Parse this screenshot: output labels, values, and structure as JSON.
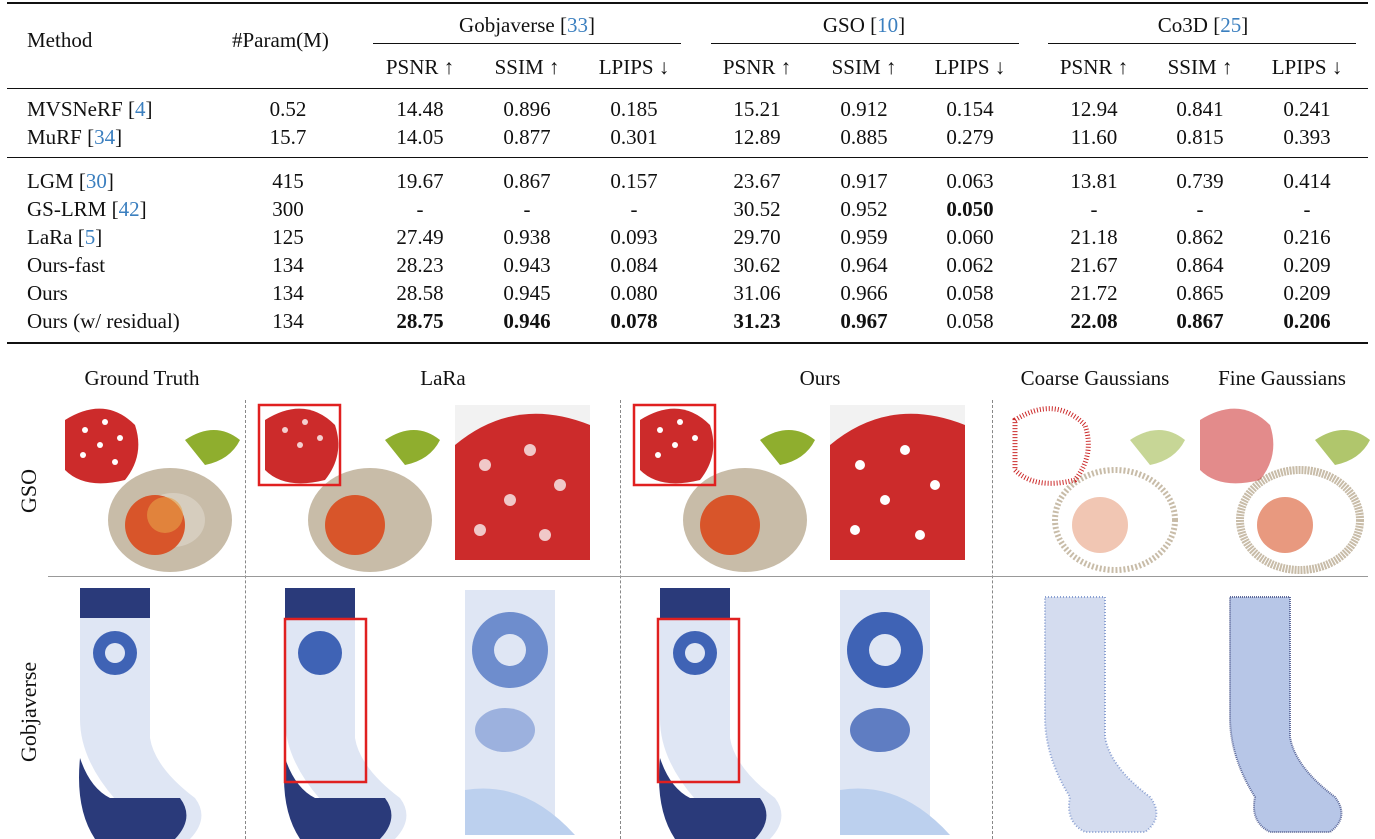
{
  "table": {
    "header": {
      "method": "Method",
      "params": "#Param(M)",
      "groups": [
        {
          "name": "Gobjaverse",
          "cite": "33"
        },
        {
          "name": "GSO",
          "cite": "10"
        },
        {
          "name": "Co3D",
          "cite": "25"
        }
      ],
      "metrics": [
        "PSNR ↑",
        "SSIM ↑",
        "LPIPS ↓",
        "PSNR ↑",
        "SSIM ↑",
        "LPIPS ↓",
        "PSNR ↑",
        "SSIM ↑",
        "LPIPS ↓"
      ]
    },
    "rows": [
      {
        "name": "MVSNeRF",
        "cite": "4",
        "param": "0.52",
        "vals": [
          "14.48",
          "0.896",
          "0.185",
          "15.21",
          "0.912",
          "0.154",
          "12.94",
          "0.841",
          "0.241"
        ],
        "bold": []
      },
      {
        "name": "MuRF",
        "cite": "34",
        "param": "15.7",
        "vals": [
          "14.05",
          "0.877",
          "0.301",
          "12.89",
          "0.885",
          "0.279",
          "11.60",
          "0.815",
          "0.393"
        ],
        "bold": []
      },
      {
        "name": "LGM",
        "cite": "30",
        "param": "415",
        "vals": [
          "19.67",
          "0.867",
          "0.157",
          "23.67",
          "0.917",
          "0.063",
          "13.81",
          "0.739",
          "0.414"
        ],
        "bold": []
      },
      {
        "name": "GS-LRM",
        "cite": "42",
        "param": "300",
        "vals": [
          "-",
          "-",
          "-",
          "30.52",
          "0.952",
          "0.050",
          "-",
          "-",
          "-"
        ],
        "bold": [
          5
        ]
      },
      {
        "name": "LaRa",
        "cite": "5",
        "param": "125",
        "vals": [
          "27.49",
          "0.938",
          "0.093",
          "29.70",
          "0.959",
          "0.060",
          "21.18",
          "0.862",
          "0.216"
        ],
        "bold": []
      },
      {
        "name": "Ours-fast",
        "cite": "",
        "param": "134",
        "vals": [
          "28.23",
          "0.943",
          "0.084",
          "30.62",
          "0.964",
          "0.062",
          "21.67",
          "0.864",
          "0.209"
        ],
        "bold": []
      },
      {
        "name": "Ours",
        "cite": "",
        "param": "134",
        "vals": [
          "28.58",
          "0.945",
          "0.080",
          "31.06",
          "0.966",
          "0.058",
          "21.72",
          "0.865",
          "0.209"
        ],
        "bold": []
      },
      {
        "name": "Ours (w/ residual)",
        "cite": "",
        "param": "134",
        "vals": [
          "28.75",
          "0.946",
          "0.078",
          "31.23",
          "0.967",
          "0.058",
          "22.08",
          "0.867",
          "0.206"
        ],
        "bold": [
          0,
          1,
          2,
          3,
          4,
          6,
          7,
          8
        ]
      }
    ]
  },
  "figure": {
    "columns": [
      "Ground Truth",
      "LaRa",
      "Ours",
      "Coarse Gaussians",
      "Fine Gaussians"
    ],
    "rows": [
      "GSO",
      "Gobjaverse"
    ],
    "colors": {
      "red": "#cc2b2b",
      "green": "#8fae2e",
      "beige": "#c8bca8",
      "orange": "#d8552a",
      "navy": "#2a3a7a",
      "blue": "#3f63b5",
      "box": "#e02020"
    }
  }
}
